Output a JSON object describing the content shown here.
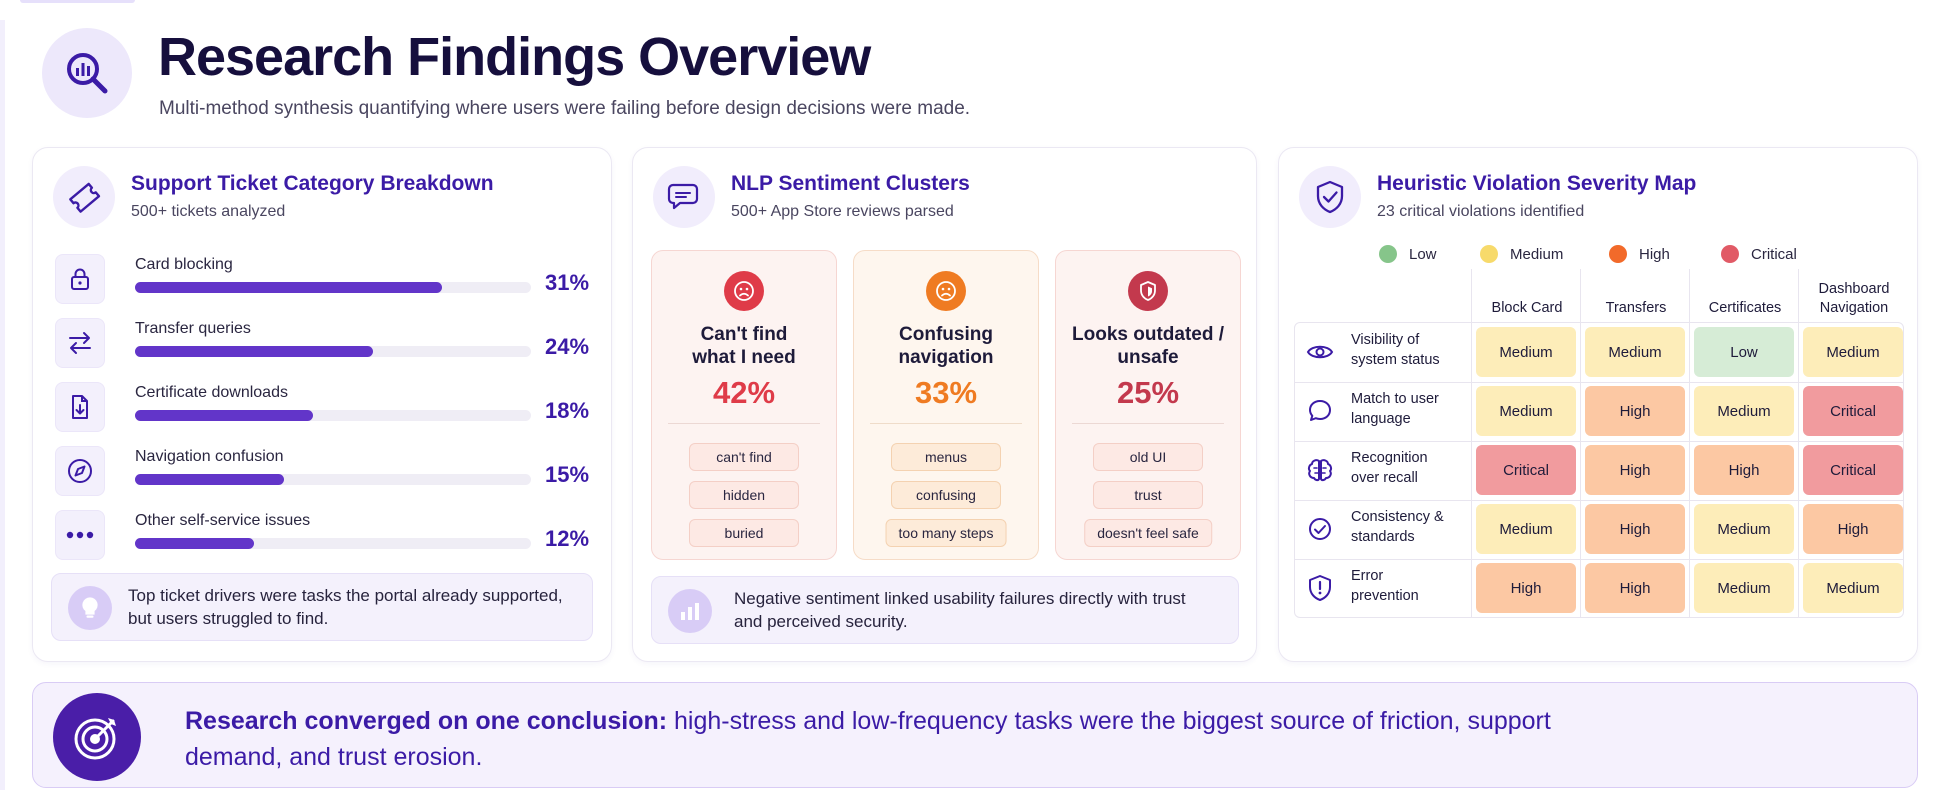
{
  "header": {
    "title": "Research Findings Overview",
    "subtitle": "Multi-method synthesis quantifying where users were failing before design decisions were made.",
    "icon": "search-chart-icon"
  },
  "colors": {
    "primary": "#3b1ba6",
    "bar": "#6235c9",
    "low": "#d6ecd6",
    "medium": "#fdedb9",
    "high": "#fcc8a3",
    "critical": "#f19b9e"
  },
  "tickets": {
    "title": "Support Ticket Category Breakdown",
    "subtitle": "500+ tickets analyzed",
    "icon": "ticket-icon",
    "items": [
      {
        "label": "Card blocking",
        "value": 31,
        "pct": "31%",
        "icon": "lock-icon"
      },
      {
        "label": "Transfer queries",
        "value": 24,
        "pct": "24%",
        "icon": "transfer-arrows-icon"
      },
      {
        "label": "Certificate downloads",
        "value": 18,
        "pct": "18%",
        "icon": "document-download-icon"
      },
      {
        "label": "Navigation confusion",
        "value": 15,
        "pct": "15%",
        "icon": "compass-icon"
      },
      {
        "label": "Other self-service issues",
        "value": 12,
        "pct": "12%",
        "icon": "more-dots-icon"
      }
    ],
    "callout": "Top ticket drivers were tasks the portal already supported, but users struggled to find."
  },
  "sentiment": {
    "title": "NLP Sentiment Clusters",
    "subtitle": "500+ App Store reviews parsed",
    "clusters": [
      {
        "title_line1": "Can't find",
        "title_line2": "what I need",
        "pct": "42%",
        "color": "#df3b48",
        "icon": "sad-face-icon",
        "chips": [
          "can't find",
          "hidden",
          "buried"
        ]
      },
      {
        "title_line1": "Confusing",
        "title_line2": "navigation",
        "pct": "33%",
        "color": "#ef7b22",
        "icon": "sad-face-icon",
        "chips": [
          "menus",
          "confusing",
          "too many steps"
        ]
      },
      {
        "title_line1": "Looks outdated /",
        "title_line2": "unsafe",
        "pct": "25%",
        "color": "#c3394d",
        "icon": "shield-alert-icon",
        "chips": [
          "old UI",
          "trust",
          "doesn't feel safe"
        ]
      }
    ],
    "callout": "Negative sentiment linked usability failures directly with trust and perceived security."
  },
  "heuristics": {
    "title": "Heuristic Violation Severity Map",
    "subtitle": "23 critical violations identified",
    "legend": [
      {
        "label": "Low",
        "color": "#86c58a"
      },
      {
        "label": "Medium",
        "color": "#f7da6b"
      },
      {
        "label": "High",
        "color": "#f26a2a"
      },
      {
        "label": "Critical",
        "color": "#e15a66"
      }
    ],
    "columns": [
      "Block Card",
      "Transfers",
      "Certificates",
      "Dashboard Navigation"
    ],
    "rows": [
      {
        "label_line1": "Visibility of",
        "label_line2": "system status",
        "icon": "eye-icon",
        "cells": [
          "Medium",
          "Medium",
          "Low",
          "Medium"
        ]
      },
      {
        "label_line1": "Match to user",
        "label_line2": "language",
        "icon": "speech-bubble-icon",
        "cells": [
          "Medium",
          "High",
          "Medium",
          "Critical"
        ]
      },
      {
        "label_line1": "Recognition",
        "label_line2": "over recall",
        "icon": "brain-icon",
        "cells": [
          "Critical",
          "High",
          "High",
          "Critical"
        ]
      },
      {
        "label_line1": "Consistency &",
        "label_line2": "standards",
        "icon": "check-circle-icon",
        "cells": [
          "Medium",
          "High",
          "Medium",
          "High"
        ]
      },
      {
        "label_line1": "Error",
        "label_line2": "prevention",
        "icon": "shield-exclamation-icon",
        "cells": [
          "High",
          "High",
          "Medium",
          "Medium"
        ]
      }
    ]
  },
  "banner": {
    "lead": "Research converged on one conclusion:",
    "text": " high-stress and low-frequency tasks were the biggest source of friction, support demand, and trust erosion.",
    "icon": "target-icon"
  }
}
